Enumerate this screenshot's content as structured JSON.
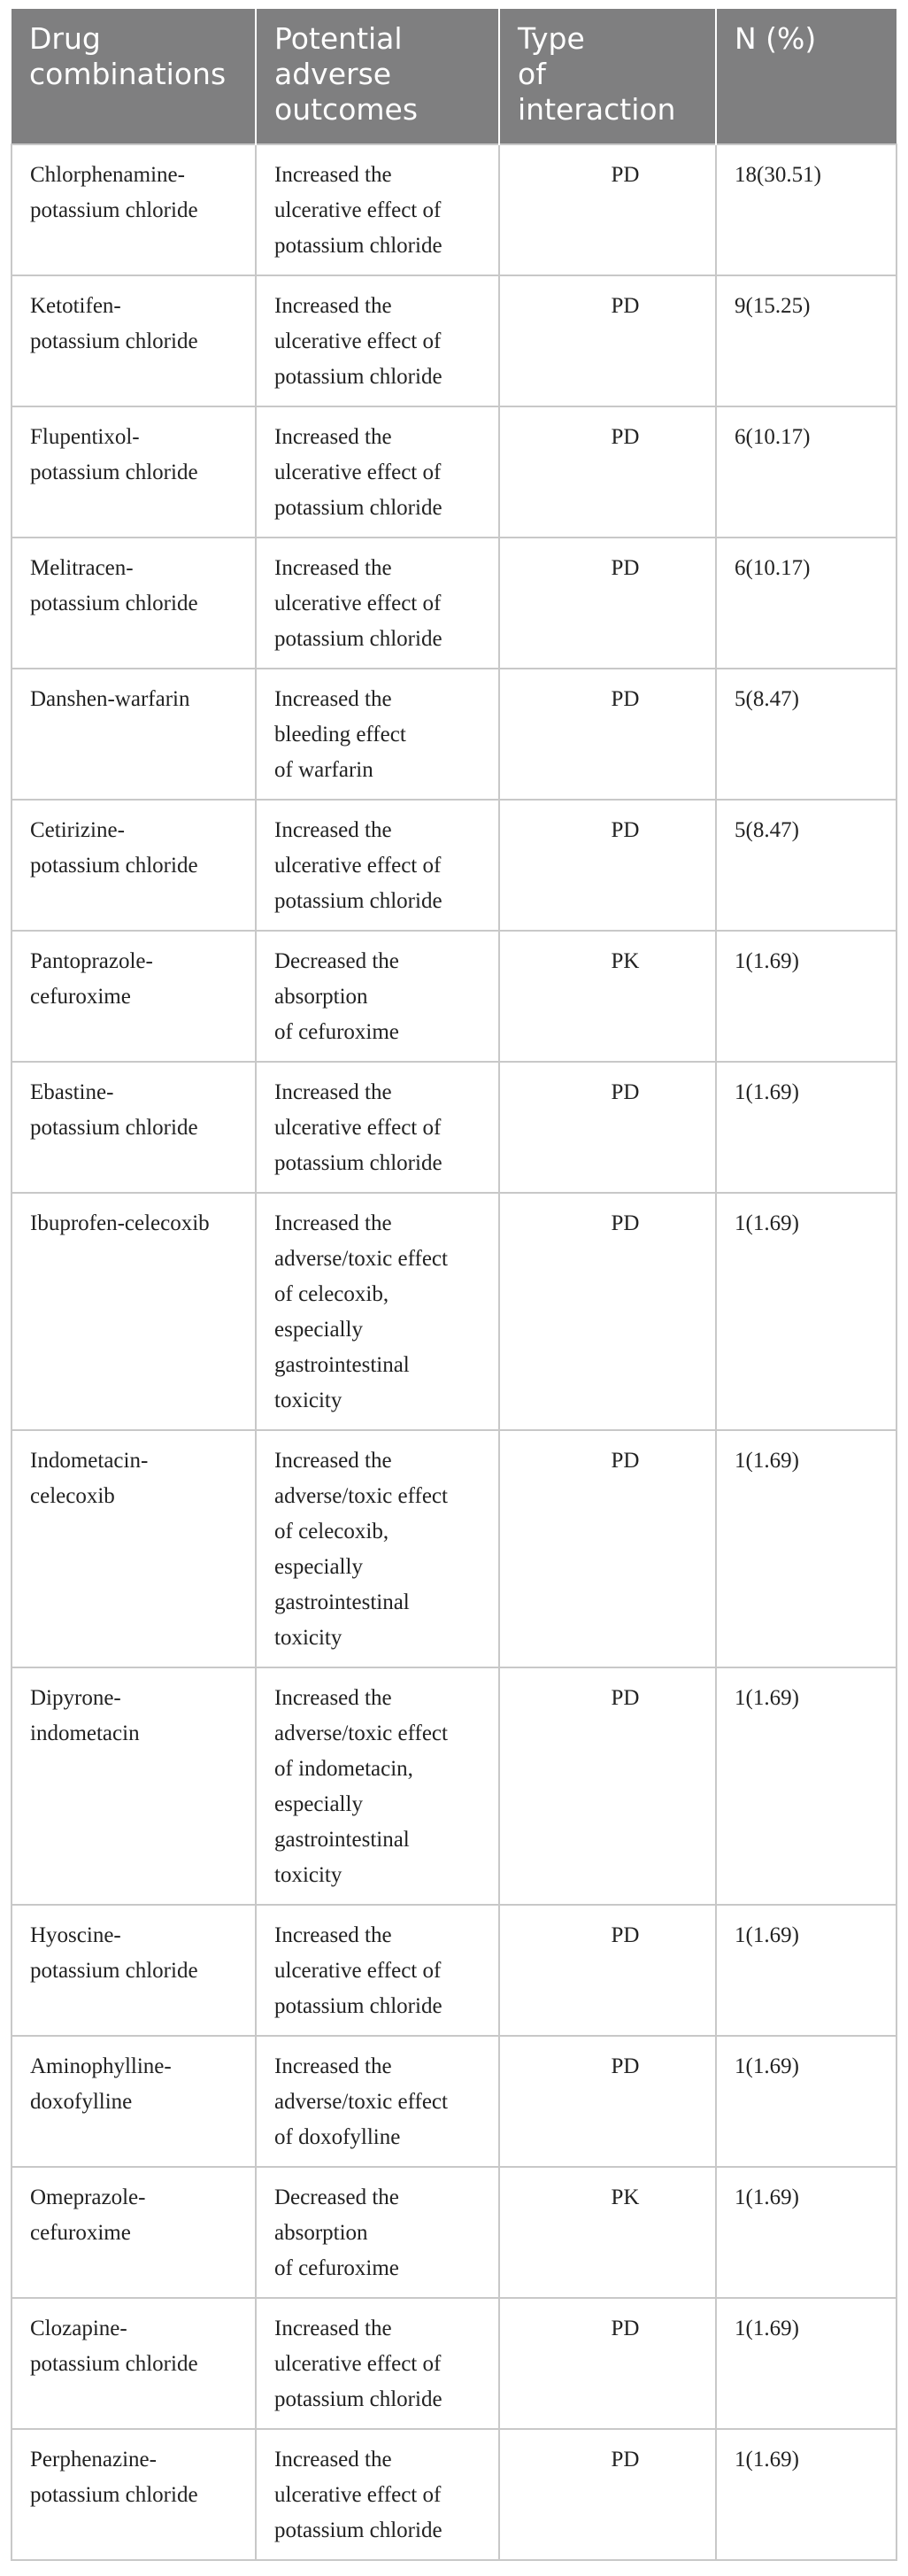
{
  "headers": [
    "Drug\ncombinations",
    "Potential\nadverse\noutcomes",
    "Type\nof\ninteraction",
    "N (%)"
  ],
  "rows": [
    {
      "combo": "Chlorphenamine-potassium chloride",
      "outcome": "Increased the ulcerative effect of potassium chloride",
      "type": "PD",
      "n": "18(30.51)"
    },
    {
      "combo": "Ketotifen-potassium chloride",
      "outcome": "Increased the ulcerative effect of potassium chloride",
      "type": "PD",
      "n": "9(15.25)"
    },
    {
      "combo": "Flupentixol-potassium chloride",
      "outcome": "Increased the ulcerative effect of potassium chloride",
      "type": "PD",
      "n": "6(10.17)"
    },
    {
      "combo": "Melitracen-potassium chloride",
      "outcome": "Increased the ulcerative effect of potassium chloride",
      "type": "PD",
      "n": "6(10.17)"
    },
    {
      "combo": "Danshen-warfarin",
      "outcome": "Increased the bleeding effect of warfarin",
      "type": "PD",
      "n": "5(8.47)"
    },
    {
      "combo": "Cetirizine-potassium chloride",
      "outcome": "Increased the ulcerative effect of potassium chloride",
      "type": "PD",
      "n": "5(8.47)"
    },
    {
      "combo": "Pantoprazole-cefuroxime",
      "outcome": "Decreased the absorption of cefuroxime",
      "type": "PK",
      "n": "1(1.69)"
    },
    {
      "combo": "Ebastine-potassium chloride",
      "outcome": "Increased the ulcerative effect of potassium chloride",
      "type": "PD",
      "n": "1(1.69)"
    },
    {
      "combo": "Ibuprofen-celecoxib",
      "outcome": "Increased the adverse/toxic effect of celecoxib, especially gastrointestinal toxicity",
      "type": "PD",
      "n": "1(1.69)"
    },
    {
      "combo": "Indometacin-celecoxib",
      "outcome": "Increased the adverse/toxic effect of celecoxib, especially gastrointestinal toxicity",
      "type": "PD",
      "n": "1(1.69)"
    },
    {
      "combo": "Dipyrone-indometacin",
      "outcome": "Increased the adverse/toxic effect of indometacin, especially gastrointestinal toxicity",
      "type": "PD",
      "n": "1(1.69)"
    },
    {
      "combo": "Hyoscine-potassium chloride",
      "outcome": "Increased the ulcerative effect of potassium chloride",
      "type": "PD",
      "n": "1(1.69)"
    },
    {
      "combo": "Aminophylline-doxofylline",
      "outcome": "Increased the adverse/toxic effect of doxofylline",
      "type": "PD",
      "n": "1(1.69)"
    },
    {
      "combo": "Omeprazole-cefuroxime",
      "outcome": "Decreased the absorption of cefuroxime",
      "type": "PK",
      "n": "1(1.69)"
    },
    {
      "combo": "Clozapine-potassium chloride",
      "outcome": "Increased the ulcerative effect of potassium chloride",
      "type": "PD",
      "n": "1(1.69)"
    },
    {
      "combo": "Perphenazine-potassium chloride",
      "outcome": "Increased the ulcerative effect of potassium chloride",
      "type": "PD",
      "n": "1(1.69)"
    }
  ]
}
